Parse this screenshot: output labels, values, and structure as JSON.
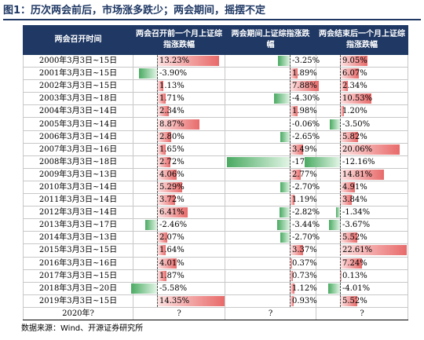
{
  "title": "图1：历次两会前后，市场涨多跌少；两会期间，摇摆不定",
  "source": "数据来源：Wind、开源证券研究所",
  "headers": [
    "两会召开时间",
    "两会召开前一个月上证综指涨跌幅",
    "两会期间上证综指涨跌幅",
    "两会结束后一个月上证综指涨跌幅"
  ],
  "colors": {
    "header_bg": "#1f3864",
    "positive_bar": "#e86a6a",
    "negative_bar": "#4aaa62"
  },
  "chart_data": {
    "type": "table",
    "unit": "%",
    "rows": [
      {
        "period": "2000年3月3日~15日",
        "before": 13.23,
        "during": -3.25,
        "after": 9.05,
        "before_text": "13.23%",
        "during_text": "-3.25%",
        "after_text": "9.05%"
      },
      {
        "period": "2001年3月3日~15日",
        "before": -3.9,
        "during": 1.89,
        "after": 6.07,
        "before_text": "-3.90%",
        "during_text": "1.89%",
        "after_text": "6.07%"
      },
      {
        "period": "2002年3月3日~15日",
        "before": 1.13,
        "during": 7.88,
        "after": 2.34,
        "before_text": "1.13%",
        "during_text": "7.88%",
        "after_text": "2.34%"
      },
      {
        "period": "2003年3月3日~18日",
        "before": 1.71,
        "during": -4.3,
        "after": 10.53,
        "before_text": "1.71%",
        "during_text": "-4.30%",
        "after_text": "10.53%"
      },
      {
        "period": "2004年3月3日~14日",
        "before": 2.34,
        "during": 1.98,
        "after": 1.2,
        "before_text": "2.34%",
        "during_text": "1.98%",
        "after_text": "1.20%"
      },
      {
        "period": "2005年3月3日~14日",
        "before": 8.87,
        "during": -0.06,
        "after": -3.5,
        "before_text": "8.87%",
        "during_text": "-0.06%",
        "after_text": "-3.50%"
      },
      {
        "period": "2006年3月3日~14日",
        "before": 2.8,
        "during": -2.65,
        "after": 5.82,
        "before_text": "2.80%",
        "during_text": "-2.65%",
        "after_text": "5.82%"
      },
      {
        "period": "2007年3月3日~16日",
        "before": 1.65,
        "during": 3.49,
        "after": 20.06,
        "before_text": "1.65%",
        "during_text": "3.49%",
        "after_text": "20.06%"
      },
      {
        "period": "2008年3月3日~18日",
        "before": 2.72,
        "during": -17.33,
        "after": -12.16,
        "before_text": "2.72%",
        "during_text": "-17.33%",
        "after_text": "-12.16%"
      },
      {
        "period": "2009年3月3日~13日",
        "before": 4.06,
        "during": 2.77,
        "after": 14.81,
        "before_text": "4.06%",
        "during_text": "2.77%",
        "after_text": "14.81%"
      },
      {
        "period": "2010年3月3日~14日",
        "before": 5.29,
        "during": -2.7,
        "after": 4.91,
        "before_text": "5.29%",
        "during_text": "-2.70%",
        "after_text": "4.91%"
      },
      {
        "period": "2011年3月3日~14日",
        "before": 3.72,
        "during": 1.19,
        "after": 3.84,
        "before_text": "3.72%",
        "during_text": "1.19%",
        "after_text": "3.84%"
      },
      {
        "period": "2012年3月3日~14日",
        "before": 6.41,
        "during": -2.82,
        "after": -1.34,
        "before_text": "6.41%",
        "during_text": "-2.82%",
        "after_text": "-1.34%"
      },
      {
        "period": "2013年3月3日~17日",
        "before": -2.46,
        "during": -3.44,
        "after": -3.67,
        "before_text": "-2.46%",
        "during_text": "-3.44%",
        "after_text": "-3.67%"
      },
      {
        "period": "2014年3月3日~13日",
        "before": 2.07,
        "during": -2.7,
        "after": 5.52,
        "before_text": "2.07%",
        "during_text": "-2.70%",
        "after_text": "5.52%"
      },
      {
        "period": "2015年3月3日~15日",
        "before": 1.64,
        "during": 3.37,
        "after": 22.61,
        "before_text": "1.64%",
        "during_text": "3.37%",
        "after_text": "22.61%"
      },
      {
        "period": "2016年3月3日~16日",
        "before": 4.01,
        "during": 0.37,
        "after": 7.24,
        "before_text": "4.01%",
        "during_text": "0.37%",
        "after_text": "7.24%"
      },
      {
        "period": "2017年3月3日~15日",
        "before": 1.87,
        "during": 0.73,
        "after": 0.13,
        "before_text": "1.87%",
        "during_text": "0.73%",
        "after_text": "0.13%"
      },
      {
        "period": "2018年3月3日~20日",
        "before": -5.58,
        "during": 1.12,
        "after": -4.01,
        "before_text": "-5.58%",
        "during_text": "1.12%",
        "after_text": "-4.01%"
      },
      {
        "period": "2019年3月3日~15日",
        "before": 14.35,
        "during": 0.93,
        "after": 5.52,
        "before_text": "14.35%",
        "during_text": "0.93%",
        "after_text": "5.52%"
      },
      {
        "period": "2020年?",
        "before": null,
        "during": null,
        "after": null,
        "before_text": "?",
        "during_text": "?",
        "after_text": "?"
      }
    ]
  }
}
